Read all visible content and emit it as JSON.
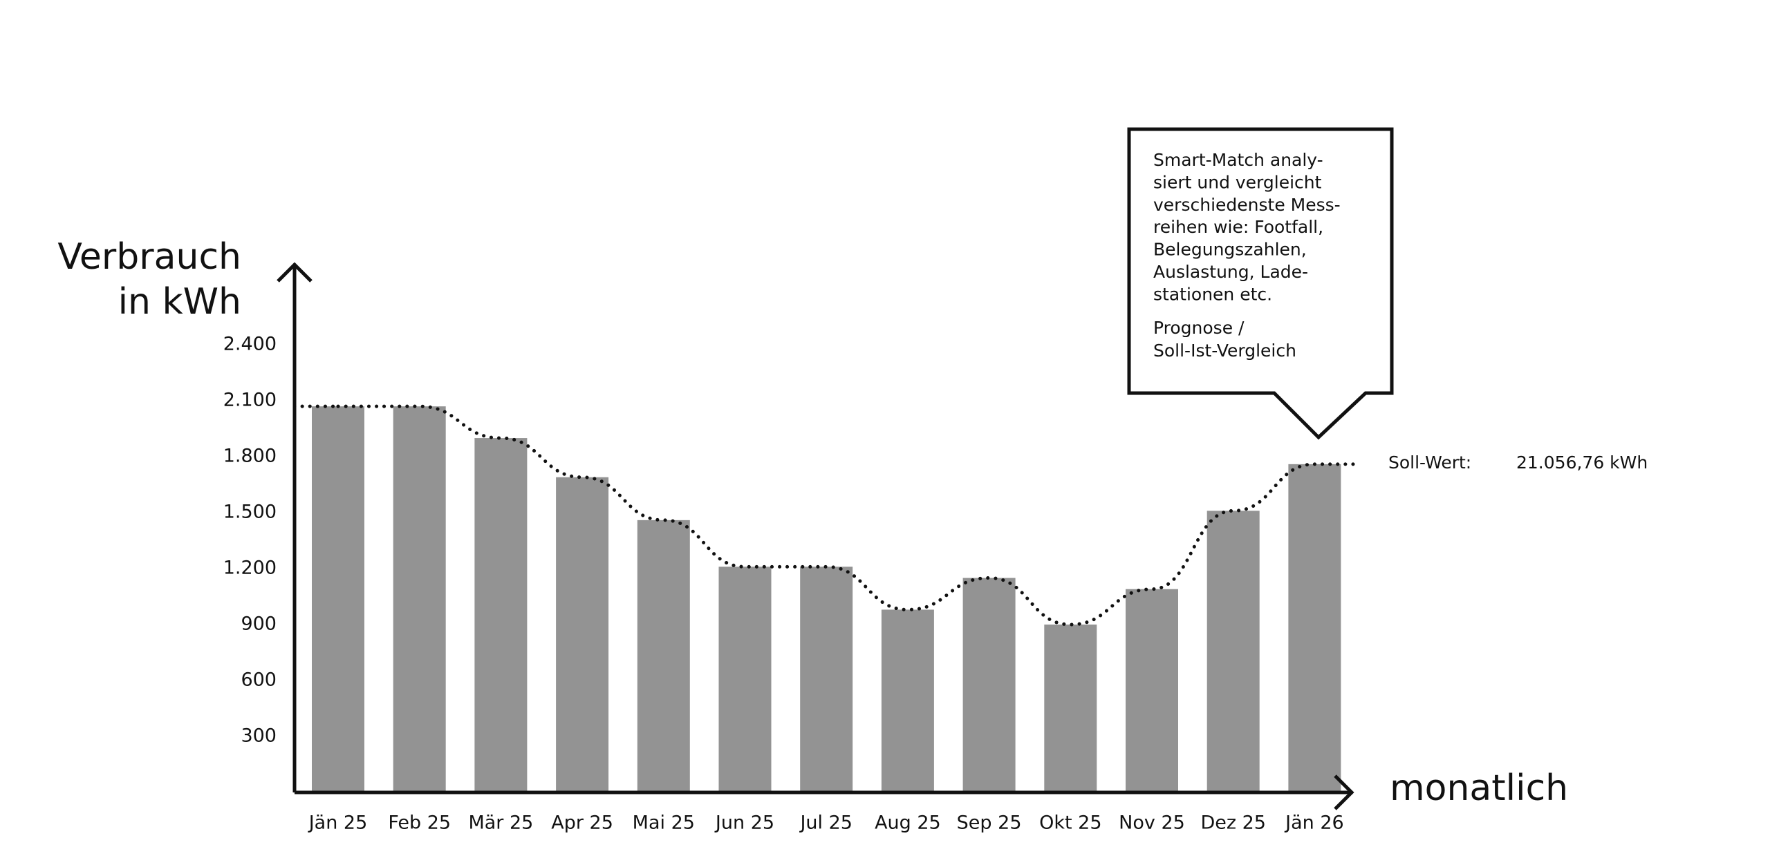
{
  "chart_data": {
    "type": "bar",
    "y_label": [
      "Verbrauch",
      "in kWh"
    ],
    "x_label": "monatlich",
    "categories": [
      "Jän 25",
      "Feb 25",
      "Mär 25",
      "Apr 25",
      "Mai 25",
      "Jun 25",
      "Jul 25",
      "Aug 25",
      "Sep 25",
      "Okt 25",
      "Nov 25",
      "Dez 25",
      "Jän 26"
    ],
    "values": [
      2070,
      2070,
      1900,
      1690,
      1460,
      1210,
      1210,
      980,
      1150,
      900,
      1090,
      1510,
      1760
    ],
    "color": "#939393",
    "line": {
      "values": [
        2070,
        2070,
        1900,
        1690,
        1460,
        1210,
        1210,
        980,
        1150,
        900,
        1090,
        1510,
        1760
      ],
      "color": "#111111",
      "style": "dotted"
    },
    "ylim": [
      0,
      2830
    ],
    "yticks": [
      300,
      600,
      900,
      {
        "value": 1200,
        "label": "1.200"
      },
      {
        "value": 1500,
        "label": "1.500"
      },
      {
        "value": 1800,
        "label": "1.800"
      },
      {
        "value": 2100,
        "label": "2.100"
      },
      {
        "value": 2400,
        "label": "2.400"
      }
    ],
    "grid": false,
    "callout": {
      "lines": [
        "Smart-Match analy-",
        "siert und vergleicht",
        "verschiedenste Mess-",
        "reihen wie: Footfall,",
        "Belegungszahlen,",
        "Auslastung, Lade-",
        "stationen etc."
      ],
      "lines2": [
        "Prognose /",
        "Soll-Ist-Vergleich"
      ]
    },
    "target": {
      "label": "Soll-Wert:",
      "value_text": "21.056,76 kWh"
    }
  }
}
